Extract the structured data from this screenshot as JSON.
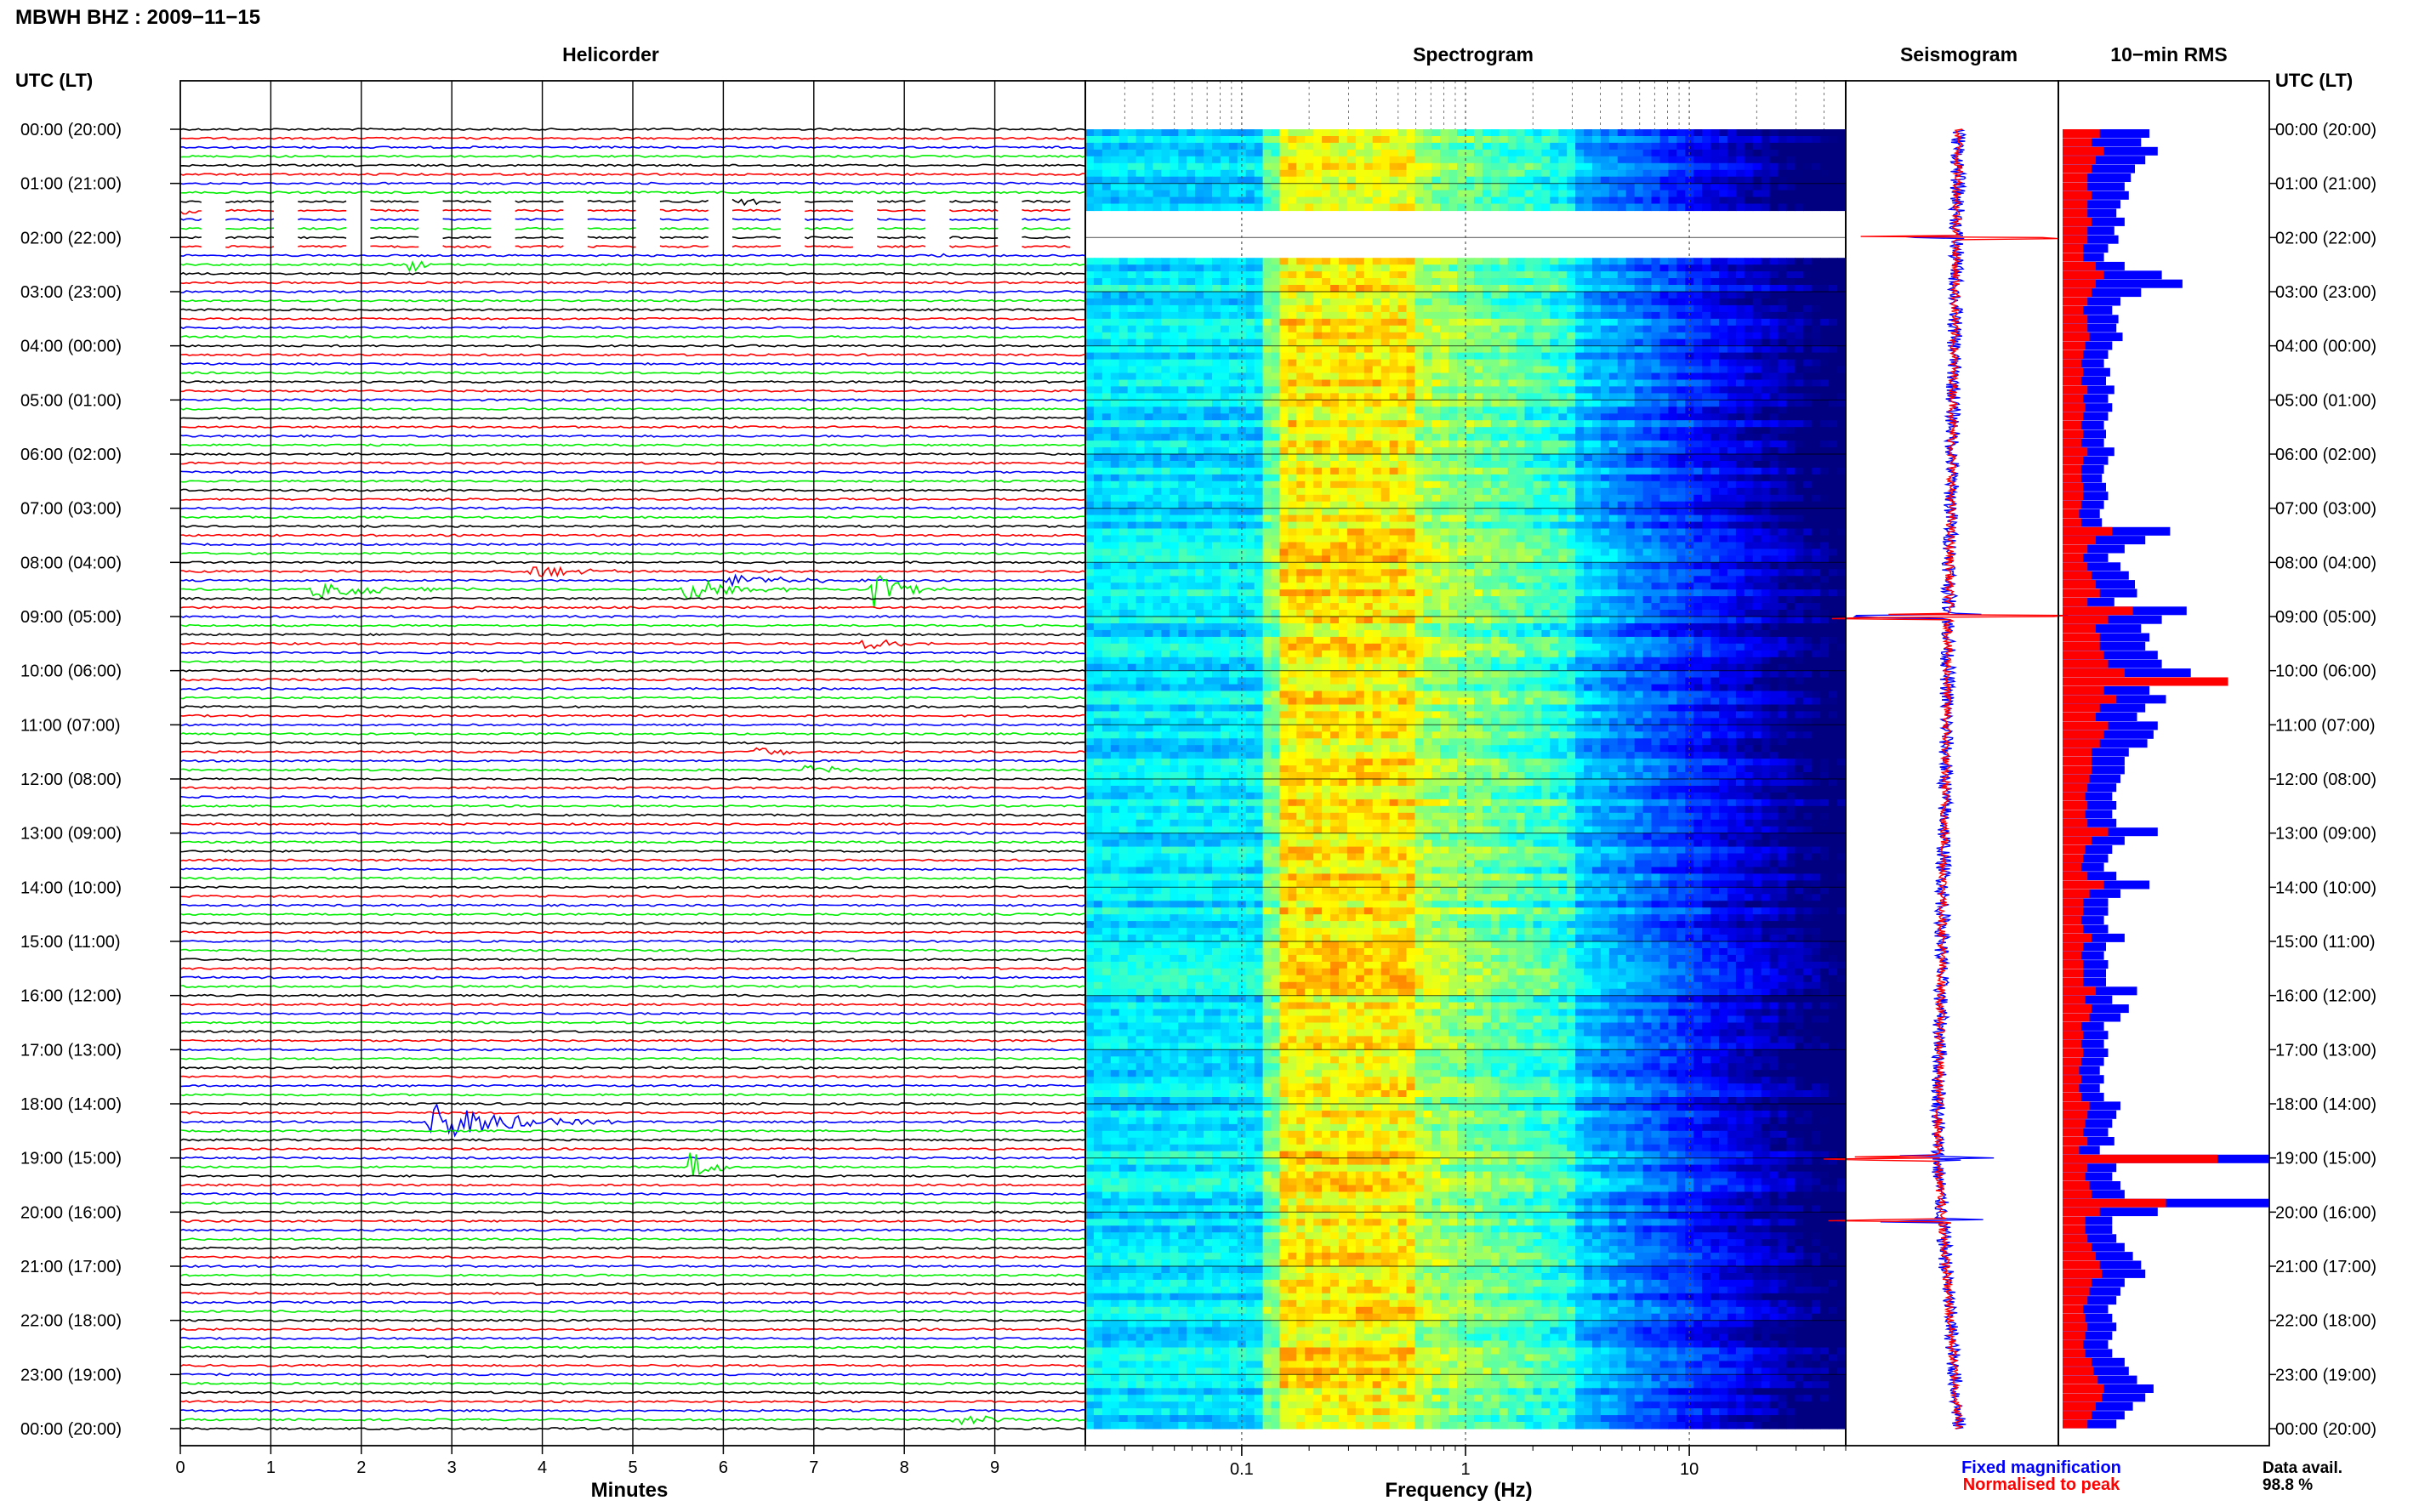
{
  "header": {
    "title": "MBWH BHZ : 2009−11−15",
    "utc_label": "UTC (LT)"
  },
  "panels": {
    "helicorder": "Helicorder",
    "spectrogram": "Spectrogram",
    "seismogram": "Seismogram",
    "rms": "10−min RMS"
  },
  "axes": {
    "minutes_label": "Minutes",
    "frequency_label": "Frequency (Hz)"
  },
  "legend": {
    "fixed": "Fixed magnification",
    "normalised": "Normalised to peak",
    "fixed_color": "#0000ff",
    "normalised_color": "#ff0000"
  },
  "availability": {
    "label": "Data avail.",
    "value": "98.8 %"
  },
  "colors": {
    "trace_cycle": [
      "#000000",
      "#ff0000",
      "#0000ff",
      "#00ee00"
    ],
    "rms_fixed": "#0000ff",
    "rms_normalised": "#ff0000"
  },
  "chart_data": [
    {
      "type": "helicorder",
      "title": "Helicorder",
      "xlabel": "Minutes",
      "xlim": [
        0,
        10
      ],
      "x_ticks": [
        "0",
        "1",
        "2",
        "3",
        "4",
        "5",
        "6",
        "7",
        "8",
        "9"
      ],
      "time_labels_left": [
        "00:00 (20:00)",
        "01:00 (21:00)",
        "02:00 (22:00)",
        "03:00 (23:00)",
        "04:00 (00:00)",
        "05:00 (01:00)",
        "06:00 (02:00)",
        "07:00 (03:00)",
        "08:00 (04:00)",
        "09:00 (05:00)",
        "10:00 (06:00)",
        "11:00 (07:00)",
        "12:00 (08:00)",
        "13:00 (09:00)",
        "14:00 (10:00)",
        "15:00 (11:00)",
        "16:00 (12:00)",
        "17:00 (13:00)",
        "18:00 (14:00)",
        "19:00 (15:00)",
        "20:00 (16:00)",
        "21:00 (17:00)",
        "22:00 (18:00)",
        "23:00 (19:00)",
        "00:00 (20:00)"
      ],
      "lines_per_hour": 6,
      "events": [
        {
          "line": 8,
          "start_min": 5.8,
          "dur_min": 1.4,
          "amp": 1.0
        },
        {
          "line": 9,
          "start_min": 0.0,
          "dur_min": 0.5,
          "amp": 0.8
        },
        {
          "line": 15,
          "start_min": 2.5,
          "dur_min": 0.3,
          "amp": 2.2
        },
        {
          "line": 14,
          "start_min": 8.3,
          "dur_min": 0.3,
          "amp": 1.2
        },
        {
          "line": 49,
          "start_min": 3.8,
          "dur_min": 1.5,
          "amp": 1.2
        },
        {
          "line": 50,
          "start_min": 6.0,
          "dur_min": 1.8,
          "amp": 1.0
        },
        {
          "line": 51,
          "start_min": 1.4,
          "dur_min": 2.2,
          "amp": 1.4
        },
        {
          "line": 51,
          "start_min": 5.5,
          "dur_min": 1.8,
          "amp": 1.6
        },
        {
          "line": 51,
          "start_min": 7.6,
          "dur_min": 0.9,
          "amp": 3.0
        },
        {
          "line": 57,
          "start_min": 7.5,
          "dur_min": 1.2,
          "amp": 1.0
        },
        {
          "line": 69,
          "start_min": 6.3,
          "dur_min": 1.2,
          "amp": 0.8
        },
        {
          "line": 71,
          "start_min": 6.8,
          "dur_min": 1.2,
          "amp": 0.9
        },
        {
          "line": 110,
          "start_min": 2.7,
          "dur_min": 2.2,
          "amp": 3.2
        },
        {
          "line": 115,
          "start_min": 5.6,
          "dur_min": 0.6,
          "amp": 3.0
        },
        {
          "line": 143,
          "start_min": 8.5,
          "dur_min": 1.5,
          "amp": 0.9
        }
      ],
      "data_gaps": [
        {
          "start_line": 8,
          "end_line": 13
        }
      ]
    },
    {
      "type": "heatmap",
      "title": "Spectrogram",
      "xlabel": "Frequency (Hz)",
      "x_scale": "log",
      "xlim": [
        0.02,
        50
      ],
      "x_ticks": [
        "0.1",
        "1",
        "10"
      ],
      "y": "time (UTC, 00:00 to 24:00)",
      "colormap": "jet (dark blue = low power, yellow-green = high)",
      "peak_band_hz": [
        0.15,
        0.6
      ],
      "gaps_utc_hours": [
        [
          1.4,
          2.3
        ],
        [
          8.2,
          8.25
        ]
      ]
    },
    {
      "type": "line",
      "title": "Seismogram",
      "series": [
        {
          "name": "Fixed magnification",
          "color": "#0000ff"
        },
        {
          "name": "Normalised to peak",
          "color": "#ff0000"
        }
      ],
      "offset_trend": "gradual drift to the left until ~19:00 then back to the right",
      "spikes_utc": [
        "02:00",
        "09:00",
        "19:00",
        "20:10"
      ]
    },
    {
      "type": "bar",
      "title": "10−min RMS",
      "orientation": "horizontal",
      "time_labels_right": [
        "00:00 (20:00)",
        "01:00 (21:00)",
        "02:00 (22:00)",
        "03:00 (23:00)",
        "04:00 (00:00)",
        "05:00 (01:00)",
        "06:00 (02:00)",
        "07:00 (03:00)",
        "08:00 (04:00)",
        "09:00 (05:00)",
        "10:00 (06:00)",
        "11:00 (07:00)",
        "12:00 (08:00)",
        "13:00 (09:00)",
        "14:00 (10:00)",
        "15:00 (11:00)",
        "16:00 (12:00)",
        "17:00 (13:00)",
        "18:00 (14:00)",
        "19:00 (15:00)",
        "20:00 (16:00)",
        "21:00 (17:00)",
        "22:00 (18:00)",
        "23:00 (19:00)",
        "00:00 (20:00)"
      ],
      "series": [
        {
          "name": "Fixed magnification",
          "color": "#0000ff",
          "values": [
            0.42,
            0.38,
            0.46,
            0.4,
            0.35,
            0.33,
            0.3,
            0.32,
            0.28,
            0.26,
            0.3,
            0.25,
            0.27,
            0.22,
            0.2,
            0.3,
            0.48,
            0.58,
            0.38,
            0.28,
            0.24,
            0.27,
            0.26,
            0.29,
            0.24,
            0.22,
            0.2,
            0.23,
            0.21,
            0.25,
            0.22,
            0.24,
            0.22,
            0.2,
            0.21,
            0.2,
            0.25,
            0.22,
            0.2,
            0.19,
            0.21,
            0.22,
            0.2,
            0.18,
            0.19,
            0.52,
            0.4,
            0.3,
            0.22,
            0.28,
            0.32,
            0.35,
            0.36,
            0.25,
            0.6,
            0.48,
            0.38,
            0.42,
            0.4,
            0.46,
            0.48,
            0.62,
            0.8,
            0.42,
            0.5,
            0.4,
            0.36,
            0.46,
            0.44,
            0.41,
            0.32,
            0.3,
            0.3,
            0.28,
            0.26,
            0.24,
            0.26,
            0.24,
            0.26,
            0.46,
            0.3,
            0.24,
            0.22,
            0.2,
            0.26,
            0.42,
            0.28,
            0.22,
            0.22,
            0.2,
            0.22,
            0.3,
            0.21,
            0.2,
            0.22,
            0.21,
            0.21,
            0.36,
            0.24,
            0.32,
            0.28,
            0.2,
            0.22,
            0.2,
            0.22,
            0.2,
            0.18,
            0.2,
            0.18,
            0.2,
            0.28,
            0.26,
            0.24,
            0.22,
            0.25,
            0.18,
            1.0,
            0.26,
            0.24,
            0.28,
            0.3,
            1.0,
            0.46,
            0.24,
            0.24,
            0.26,
            0.3,
            0.34,
            0.38,
            0.4,
            0.3,
            0.28,
            0.26,
            0.22,
            0.24,
            0.26,
            0.24,
            0.22,
            0.24,
            0.3,
            0.32,
            0.36,
            0.44,
            0.4,
            0.34,
            0.3,
            0.26
          ]
        },
        {
          "name": "Normalised to peak",
          "color": "#ff0000",
          "values": [
            0.18,
            0.14,
            0.2,
            0.16,
            0.14,
            0.12,
            0.12,
            0.14,
            0.12,
            0.12,
            0.14,
            0.12,
            0.12,
            0.1,
            0.1,
            0.16,
            0.2,
            0.16,
            0.14,
            0.12,
            0.1,
            0.12,
            0.12,
            0.13,
            0.11,
            0.1,
            0.09,
            0.1,
            0.09,
            0.12,
            0.1,
            0.11,
            0.1,
            0.09,
            0.1,
            0.09,
            0.12,
            0.1,
            0.09,
            0.09,
            0.1,
            0.1,
            0.09,
            0.08,
            0.09,
            0.24,
            0.16,
            0.12,
            0.1,
            0.12,
            0.14,
            0.16,
            0.18,
            0.12,
            0.34,
            0.22,
            0.16,
            0.18,
            0.18,
            0.2,
            0.22,
            0.3,
            0.8,
            0.2,
            0.26,
            0.18,
            0.16,
            0.22,
            0.2,
            0.18,
            0.14,
            0.14,
            0.14,
            0.13,
            0.12,
            0.11,
            0.12,
            0.11,
            0.12,
            0.22,
            0.14,
            0.11,
            0.1,
            0.09,
            0.12,
            0.2,
            0.13,
            0.1,
            0.1,
            0.09,
            0.1,
            0.14,
            0.1,
            0.09,
            0.1,
            0.1,
            0.1,
            0.16,
            0.11,
            0.14,
            0.13,
            0.09,
            0.1,
            0.09,
            0.1,
            0.09,
            0.08,
            0.09,
            0.08,
            0.09,
            0.13,
            0.12,
            0.11,
            0.1,
            0.12,
            0.08,
            0.75,
            0.12,
            0.11,
            0.13,
            0.14,
            0.5,
            0.18,
            0.11,
            0.11,
            0.12,
            0.14,
            0.16,
            0.18,
            0.19,
            0.14,
            0.13,
            0.12,
            0.1,
            0.11,
            0.12,
            0.11,
            0.1,
            0.11,
            0.14,
            0.15,
            0.17,
            0.2,
            0.19,
            0.16,
            0.14,
            0.12
          ]
        }
      ]
    }
  ]
}
